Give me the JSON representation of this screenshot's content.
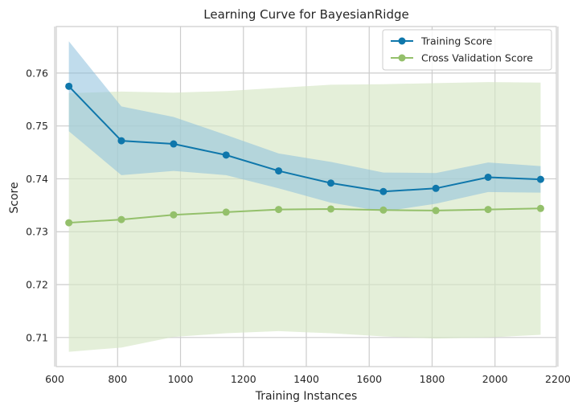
{
  "chart_data": {
    "type": "line",
    "title": "Learning Curve for BayesianRidge",
    "xlabel": "Training Instances",
    "ylabel": "Score",
    "xlim": [
      605,
      2195
    ],
    "ylim": [
      0.7045,
      0.7688
    ],
    "xticks": [
      600,
      800,
      1000,
      1200,
      1400,
      1600,
      1800,
      2000,
      2200
    ],
    "yticks": [
      0.71,
      0.72,
      0.73,
      0.74,
      0.75,
      0.76
    ],
    "xtick_labels": [
      "600",
      "800",
      "1000",
      "1200",
      "1400",
      "1600",
      "1800",
      "2000",
      "2200"
    ],
    "ytick_labels": [
      "0.71",
      "0.72",
      "0.73",
      "0.74",
      "0.75",
      "0.76"
    ],
    "grid": true,
    "legend_position": "top-right",
    "x": [
      645,
      812,
      978,
      1145,
      1312,
      1478,
      1645,
      1812,
      1978,
      2145
    ],
    "series": [
      {
        "name": "Training Score",
        "color": "#0f77ab",
        "band_color": "#8cc0dd",
        "values": [
          0.7575,
          0.7472,
          0.7466,
          0.7445,
          0.7415,
          0.7392,
          0.7376,
          0.7382,
          0.7403,
          0.7399
        ],
        "lower": [
          0.749,
          0.7407,
          0.7415,
          0.7407,
          0.7382,
          0.7355,
          0.7338,
          0.7353,
          0.7375,
          0.7374
        ],
        "upper": [
          0.766,
          0.7537,
          0.7517,
          0.7483,
          0.7448,
          0.7432,
          0.7412,
          0.7411,
          0.7431,
          0.7424
        ]
      },
      {
        "name": "Cross Validation Score",
        "color": "#94c06b",
        "band_color": "#d5e6c4",
        "values": [
          0.7317,
          0.7323,
          0.7332,
          0.7337,
          0.7342,
          0.7343,
          0.7341,
          0.734,
          0.7342,
          0.7344
        ],
        "lower": [
          0.7073,
          0.7081,
          0.7101,
          0.7108,
          0.7112,
          0.7108,
          0.7102,
          0.7098,
          0.71,
          0.7105
        ],
        "upper": [
          0.7562,
          0.7565,
          0.7563,
          0.7566,
          0.7572,
          0.7578,
          0.7579,
          0.7581,
          0.7583,
          0.7582
        ]
      }
    ]
  }
}
